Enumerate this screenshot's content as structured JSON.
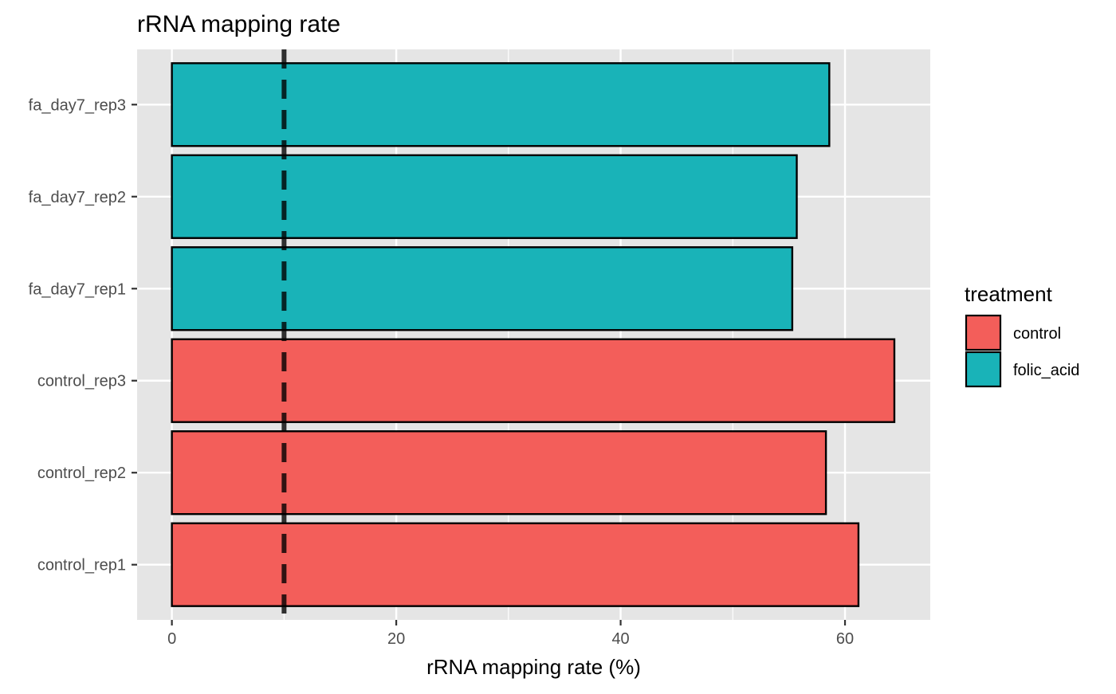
{
  "chart_data": {
    "type": "bar",
    "orientation": "horizontal",
    "title": "rRNA mapping rate",
    "xlabel": "rRNA mapping rate (%)",
    "ylabel": "",
    "categories": [
      "control_rep1",
      "control_rep2",
      "control_rep3",
      "fa_day7_rep1",
      "fa_day7_rep2",
      "fa_day7_rep3"
    ],
    "values": [
      61.2,
      58.3,
      64.4,
      55.3,
      55.7,
      58.6
    ],
    "groups": [
      "control",
      "control",
      "control",
      "folic_acid",
      "folic_acid",
      "folic_acid"
    ],
    "xlim": [
      -3.1,
      67.6
    ],
    "x_ticks": [
      0,
      20,
      40,
      60
    ],
    "x_tick_labels": [
      "0",
      "20",
      "40",
      "60"
    ],
    "reference_line": {
      "x": 10,
      "style": "dashed"
    },
    "grid": true,
    "legend": {
      "title": "treatment",
      "position": "right",
      "entries": [
        {
          "label": "control",
          "color": "#F35E5A"
        },
        {
          "label": "folic_acid",
          "color": "#19B3B8"
        }
      ]
    },
    "colors": {
      "control": "#F35E5A",
      "folic_acid": "#19B3B8",
      "panel_background": "#E5E5E5",
      "grid": "#FFFFFF"
    }
  }
}
